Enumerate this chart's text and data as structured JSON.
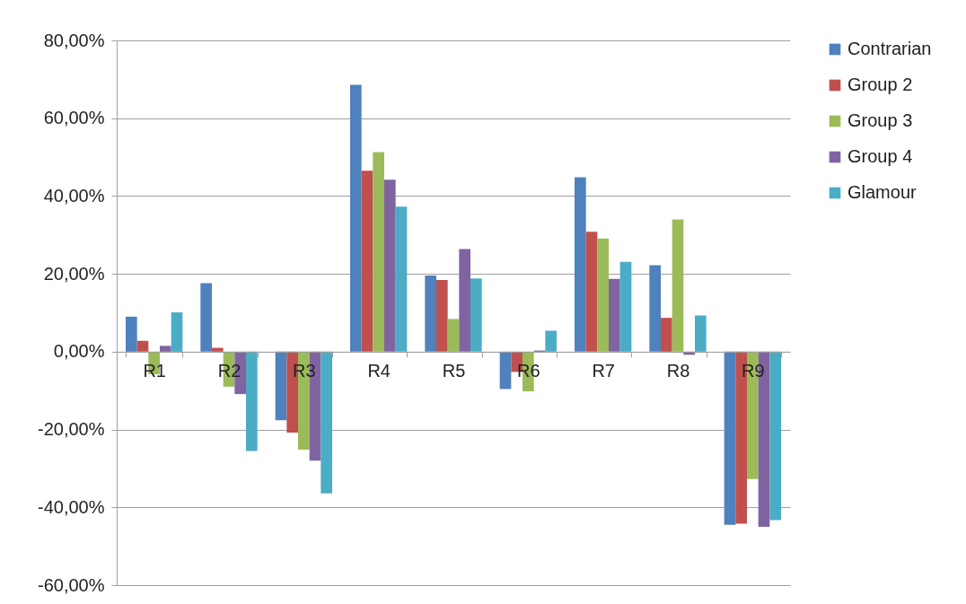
{
  "chart_data": {
    "type": "bar",
    "categories": [
      "R1",
      "R2",
      "R3",
      "R4",
      "R5",
      "R6",
      "R7",
      "R8",
      "R9"
    ],
    "series": [
      {
        "name": "Contrarian",
        "color": "#4f81bd",
        "values": [
          9.0,
          17.6,
          -17.6,
          68.6,
          19.6,
          -9.6,
          44.8,
          22.2,
          -44.5
        ]
      },
      {
        "name": "Group 2",
        "color": "#c0504d",
        "values": [
          2.8,
          1.0,
          -20.8,
          46.5,
          18.4,
          -5.2,
          30.8,
          8.7,
          -44.2
        ]
      },
      {
        "name": "Group 3",
        "color": "#9bbb59",
        "values": [
          -5.8,
          -9.0,
          -25.2,
          51.3,
          8.4,
          -10.2,
          29.1,
          34.0,
          -32.7
        ]
      },
      {
        "name": "Group 4",
        "color": "#8064a2",
        "values": [
          1.5,
          -10.9,
          -28.0,
          44.2,
          26.4,
          0.3,
          18.7,
          -0.8,
          -45.0
        ]
      },
      {
        "name": "Glamour",
        "color": "#4bacc6",
        "values": [
          10.1,
          -25.5,
          -36.4,
          37.3,
          18.8,
          5.4,
          23.1,
          9.3,
          -43.3
        ]
      }
    ],
    "ylim": [
      -60,
      80
    ],
    "yticks": [
      {
        "value": -60,
        "label": "-60,00%"
      },
      {
        "value": -40,
        "label": "-40,00%"
      },
      {
        "value": -20,
        "label": "-20,00%"
      },
      {
        "value": 0,
        "label": "0,00%"
      },
      {
        "value": 20,
        "label": "20,00%"
      },
      {
        "value": 40,
        "label": "40,00%"
      },
      {
        "value": 60,
        "label": "60,00%"
      },
      {
        "value": 80,
        "label": "80,00%"
      }
    ],
    "grid": "y",
    "legend": "right"
  }
}
